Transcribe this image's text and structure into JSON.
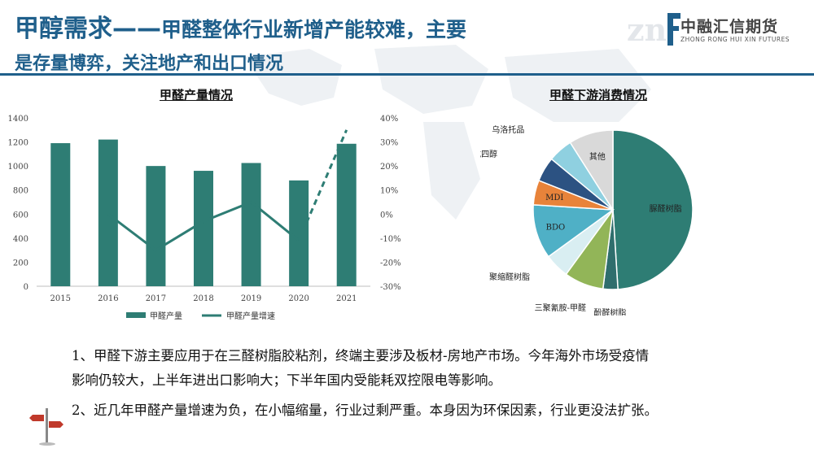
{
  "header": {
    "title_main": "甲醇需求——",
    "title_rest": "甲醛整体行业新增产能较难，主要",
    "title_line2": "是存量博弈，关注地产和出口情况"
  },
  "logo": {
    "mark": "zn",
    "cn": "中融汇信期货",
    "en": "ZHONG RONG HUI XIN FUTURES"
  },
  "charts": {
    "left_title": "甲醛产量情况",
    "right_title": "甲醛下游消费情况"
  },
  "chart_data": [
    {
      "type": "bar",
      "title": "甲醛产量情况",
      "categories": [
        "2015",
        "2016",
        "2017",
        "2018",
        "2019",
        "2020",
        "2021"
      ],
      "ylim": [
        0,
        1400
      ],
      "y_ticks": [
        "0",
        "200",
        "400",
        "600",
        "800",
        "1000",
        "1200",
        "1400"
      ],
      "y2lim": [
        -30,
        40
      ],
      "y2_ticks": [
        "-30%",
        "-20%",
        "-10%",
        "0%",
        "10%",
        "20%",
        "30%",
        "40%"
      ],
      "series": [
        {
          "name": "甲醛产量",
          "type": "bar",
          "values": [
            1190,
            1220,
            1000,
            960,
            1025,
            880,
            1185
          ],
          "color": "#2e7d74"
        },
        {
          "name": "甲醛产量增速",
          "type": "line",
          "axis": "right",
          "values": [
            null,
            0,
            -15,
            -3,
            5,
            -11,
            35
          ],
          "color": "#2e7d74"
        }
      ],
      "legend": "bottom",
      "grid": false
    },
    {
      "type": "pie",
      "title": "甲醛下游消费情况",
      "slices": [
        {
          "label": "脲醛树脂",
          "value": 49,
          "color": "#2e7d74"
        },
        {
          "label": "酚醛树脂",
          "value": 3,
          "color": "#2f6e6d"
        },
        {
          "label": "三聚氰胺-甲醛树脂",
          "value": 8,
          "color": "#92b558"
        },
        {
          "label": "聚缩醛树脂",
          "value": 5,
          "color": "#d9eef2"
        },
        {
          "label": "BDO",
          "value": 11,
          "color": "#4fb0c6"
        },
        {
          "label": "MDI",
          "value": 5,
          "color": "#e8833a"
        },
        {
          "label": "季戊四醇",
          "value": 5,
          "color": "#2c5282"
        },
        {
          "label": "乌洛托品",
          "value": 5,
          "color": "#8fd0e0"
        },
        {
          "label": "其他",
          "value": 9,
          "color": "#d9d9d9"
        }
      ]
    }
  ],
  "body": {
    "p1_line1": "1、甲醛下游主要应用于在三醛树脂胶粘剂，终端主要涉及板材-房地产市场。今年海外市场受疫情",
    "p1_line2": "影响仍较大，上半年进出口影响大；下半年国内受能耗双控限电等影响。",
    "p2": "2、近几年甲醛产量增速为负，在小幅缩量，行业过剩严重。本身因为环保因素，行业更没法扩张。"
  },
  "icons": {
    "signpost": "signpost-icon",
    "world_map": "world-map-background"
  }
}
